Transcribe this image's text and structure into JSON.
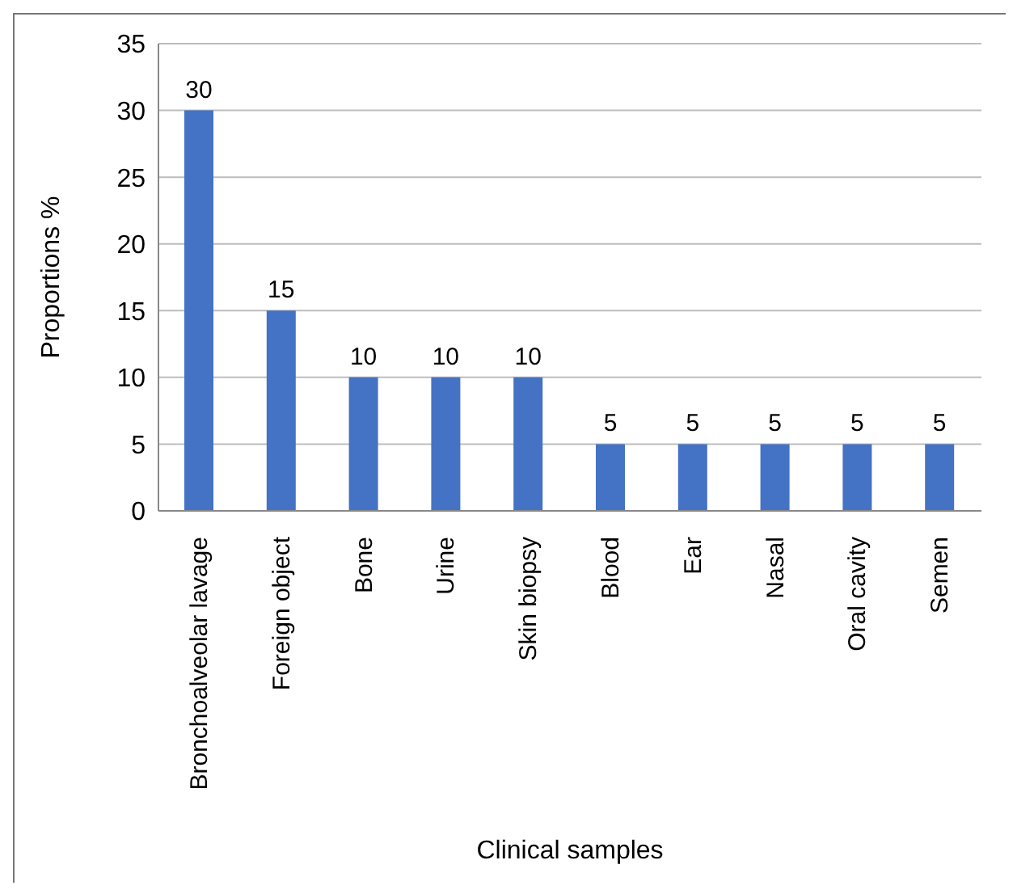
{
  "chart_data": {
    "type": "bar",
    "xlabel": "Clinical samples",
    "ylabel": "Proportions %",
    "categories": [
      "Bronchoalveolar lavage",
      "Foreign object",
      "Bone",
      "Urine",
      "Skin biopsy",
      "Blood",
      "Ear",
      "Nasal",
      "Oral cavity",
      "Semen"
    ],
    "values": [
      30,
      15,
      10,
      10,
      10,
      5,
      5,
      5,
      5,
      5
    ],
    "color": "#4472c4",
    "ylim": [
      0,
      35
    ],
    "yticks": [
      0,
      5,
      10,
      15,
      20,
      25,
      30,
      35
    ],
    "grid": "y",
    "data_labels": true
  }
}
